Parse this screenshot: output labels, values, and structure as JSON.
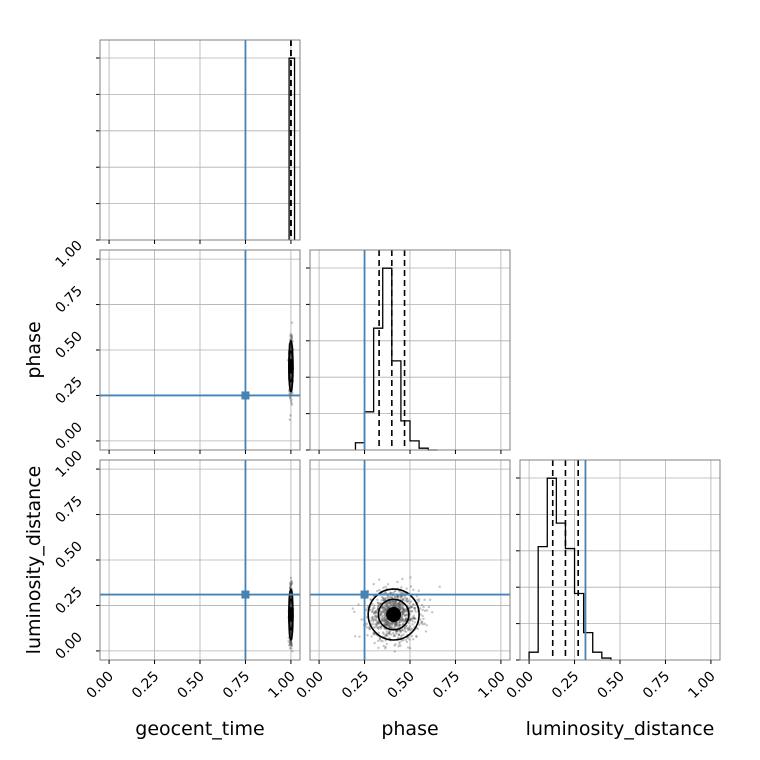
{
  "chart_data": {
    "type": "corner",
    "parameters": [
      "geocent_time",
      "phase",
      "luminosity_distance"
    ],
    "axis_labels": {
      "x": [
        "geocent_time",
        "phase",
        "luminosity_distance"
      ],
      "y": [
        "phase",
        "luminosity_distance"
      ]
    },
    "tick_labels": [
      "0.00",
      "0.25",
      "0.50",
      "0.75",
      "1.00"
    ],
    "tick_values": [
      0.0,
      0.25,
      0.5,
      0.75,
      1.0
    ],
    "axis_range": [
      -0.05,
      1.05
    ],
    "grid": true,
    "truths": {
      "geocent_time": 0.75,
      "phase": 0.25,
      "luminosity_distance": 0.31
    },
    "colors": {
      "truth": "#4682b4",
      "hist": "#000000",
      "grid": "#b0b0b0",
      "frame": "#808080",
      "scatter": "#555555"
    },
    "histograms": {
      "geocent_time": {
        "edges": [
          0.99,
          1.005,
          1.02
        ],
        "counts": [
          1.0,
          1.0
        ],
        "quantiles": [
          1.0,
          1.0,
          1.0
        ]
      },
      "phase": {
        "edges": [
          0.2,
          0.25,
          0.3,
          0.35,
          0.4,
          0.45,
          0.5,
          0.55,
          0.6,
          0.65
        ],
        "counts": [
          0.04,
          0.21,
          0.67,
          1.0,
          0.49,
          0.16,
          0.05,
          0.01,
          0.0
        ],
        "quantiles": [
          0.33,
          0.4,
          0.47
        ]
      },
      "luminosity_distance": {
        "edges": [
          0.0,
          0.05,
          0.1,
          0.15,
          0.2,
          0.25,
          0.3,
          0.35,
          0.4,
          0.45
        ],
        "counts": [
          0.04,
          0.58,
          0.93,
          0.7,
          0.57,
          0.34,
          0.14,
          0.04,
          0.01
        ],
        "quantiles": [
          0.13,
          0.2,
          0.27
        ]
      }
    },
    "samples_2d": [
      {
        "x_param": "geocent_time",
        "y_param": "phase",
        "x_center": 1.0,
        "y_center": 0.41,
        "x_sd": 0.004,
        "y_sd": 0.07
      },
      {
        "x_param": "geocent_time",
        "y_param": "luminosity_distance",
        "x_center": 1.0,
        "y_center": 0.2,
        "x_sd": 0.004,
        "y_sd": 0.07
      },
      {
        "x_param": "phase",
        "y_param": "luminosity_distance",
        "x_center": 0.41,
        "y_center": 0.2,
        "x_sd": 0.07,
        "y_sd": 0.07
      }
    ]
  }
}
